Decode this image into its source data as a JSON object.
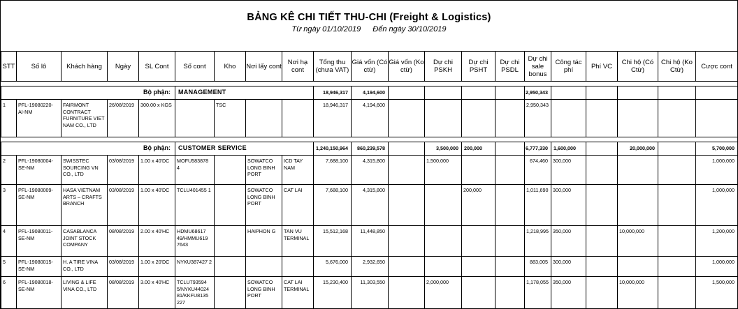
{
  "report": {
    "title": "BẢNG KÊ CHI TIẾT THU-CHI (Freight & Logistics)",
    "date_from": "Từ ngày 01/10/2019",
    "date_to": "Đến ngày 30/10/2019"
  },
  "columns": [
    "STT",
    "Số lô",
    "Khách hàng",
    "Ngày",
    "SL Cont",
    "Số cont",
    "Kho",
    "Nơi lấy cont",
    "Nơi hạ cont",
    "Tổng thu (chưa VAT)",
    "Giá vốn (Có ctừ)",
    "Giá vốn (Ko ctừ)",
    "Dự chi PSKH",
    "Dự chi PSHT",
    "Dự chi PSDL",
    "Dự chi sale bonus",
    "Công tác phí",
    "Phí VC",
    "Chi hộ (Có Ctừ)",
    "Chi hộ (Ko Ctừ)",
    "Cược cont"
  ],
  "departments": [
    {
      "label": "Bộ phận:",
      "name": "MANAGEMENT",
      "tong_thu": "18,946,317",
      "gia_von_co": "4,194,600",
      "pskh": "",
      "psht": "",
      "sale_bonus": "2,950,343",
      "cong_tac": "",
      "chi_ho_co": "",
      "cuoc_cont": "",
      "rows": [
        {
          "stt": "1",
          "so_lo": "PFL-19080220- AI-NM",
          "khach_hang": "FAIRMONT CONTRACT FURNITURE VIET NAM CO., LTD",
          "ngay": "26/08/2019",
          "sl_cont": "300.00 x KGS",
          "so_cont": "",
          "kho": "TSC",
          "noi_lay": "",
          "noi_ha": "",
          "tong_thu": "18,946,317",
          "gia_von_co": "4,194,600",
          "gia_von_ko": "",
          "pskh": "",
          "psht": "",
          "psdl": "",
          "sale_bonus": "2,950,343",
          "cong_tac": "",
          "phi_vc": "",
          "chi_ho_co": "",
          "chi_ho_ko": "",
          "cuoc_cont": ""
        }
      ]
    },
    {
      "label": "Bộ phận:",
      "name": "CUSTOMER SERVICE",
      "tong_thu": "1,240,150,964",
      "gia_von_co": "860,239,578",
      "pskh": "3,500,000",
      "psht": "200,000",
      "sale_bonus": "6,777,330",
      "cong_tac": "1,600,000",
      "chi_ho_co": "20,000,000",
      "cuoc_cont": "5,700,000",
      "rows": [
        {
          "stt": "2",
          "so_lo": "PFL-19080004-SE-NM",
          "khach_hang": "SWISSTEC SOURCING VN CO., LTD",
          "ngay": "03/08/2019",
          "sl_cont": "1.00 x 40'DC",
          "so_cont": "MOFU583878 4",
          "kho": "",
          "noi_lay": "SOWATCO LONG BINH PORT",
          "noi_ha": "ICD TAY NAM",
          "tong_thu": "7,688,100",
          "gia_von_co": "4,315,800",
          "gia_von_ko": "",
          "pskh": "1,500,000",
          "psht": "",
          "psdl": "",
          "sale_bonus": "674,460",
          "cong_tac": "300,000",
          "phi_vc": "",
          "chi_ho_co": "",
          "chi_ho_ko": "",
          "cuoc_cont": "1,000,000"
        },
        {
          "stt": "3",
          "so_lo": "PFL-19080009-SE-NM",
          "khach_hang": "HASA VIETNAM ARTS – CRAFTS BRANCH",
          "ngay": "03/08/2019",
          "sl_cont": "1.00 x 40'DC",
          "so_cont": "TCLU401455 1",
          "kho": "",
          "noi_lay": "SOWATCO LONG BINH PORT",
          "noi_ha": "CAT LAI",
          "tong_thu": "7,688,100",
          "gia_von_co": "4,315,800",
          "gia_von_ko": "",
          "pskh": "",
          "psht": "200,000",
          "psdl": "",
          "sale_bonus": "1,011,690",
          "cong_tac": "300,000",
          "phi_vc": "",
          "chi_ho_co": "",
          "chi_ho_ko": "",
          "cuoc_cont": "1,000,000"
        },
        {
          "stt": "4",
          "so_lo": "PFL-19080011-SE-NM",
          "khach_hang": "CASABLANCA JOINT STOCK COMPANY",
          "ngay": "08/08/2019",
          "sl_cont": "2.00 x 40'HC",
          "so_cont": "HDMU68617 49/HMMU619 7643",
          "kho": "",
          "noi_lay": "HAIPHON G",
          "noi_ha": "TAN VU TERMINAL",
          "tong_thu": "15,512,168",
          "gia_von_co": "11,448,850",
          "gia_von_ko": "",
          "pskh": "",
          "psht": "",
          "psdl": "",
          "sale_bonus": "1,218,995",
          "cong_tac": "350,000",
          "phi_vc": "",
          "chi_ho_co": "10,000,000",
          "chi_ho_ko": "",
          "cuoc_cont": "1,200,000"
        },
        {
          "stt": "5",
          "so_lo": "PFL-19080015-SE-NM",
          "khach_hang": "H. A TIRE VINA CO., LTD",
          "ngay": "03/08/2019",
          "sl_cont": "1.00 x 20'DC",
          "so_cont": "NYKU387427 2",
          "kho": "",
          "noi_lay": "",
          "noi_ha": "",
          "tong_thu": "5,676,000",
          "gia_von_co": "2,932,650",
          "gia_von_ko": "",
          "pskh": "",
          "psht": "",
          "psdl": "",
          "sale_bonus": "883,005",
          "cong_tac": "300,000",
          "phi_vc": "",
          "chi_ho_co": "",
          "chi_ho_ko": "",
          "cuoc_cont": "1,000,000"
        },
        {
          "stt": "6",
          "so_lo": "PFL-19080018-SE-NM",
          "khach_hang": "LIVING & LIFE VINA CO., LTD",
          "ngay": "08/08/2019",
          "sl_cont": "3.00 x 40'HC",
          "so_cont": "TCLU793594 5/NYKU44024 81/KKFU8135 227",
          "kho": "",
          "noi_lay": "SOWATCO LONG BINH PORT",
          "noi_ha": "CAT LAI TERMINAL",
          "tong_thu": "15,230,400",
          "gia_von_co": "11,303,550",
          "gia_von_ko": "",
          "pskh": "2,000,000",
          "psht": "",
          "psdl": "",
          "sale_bonus": "1,178,055",
          "cong_tac": "350,000",
          "phi_vc": "",
          "chi_ho_co": "10,000,000",
          "chi_ho_ko": "",
          "cuoc_cont": "1,500,000"
        }
      ]
    }
  ]
}
